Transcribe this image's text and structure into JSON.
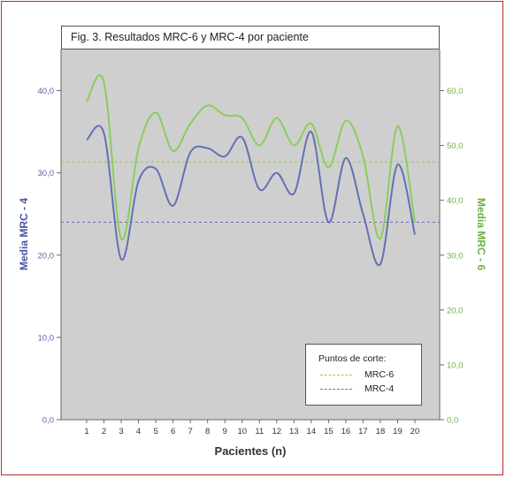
{
  "title": "Fig. 3. Resultados MRC-6 y MRC-4 por paciente",
  "colors": {
    "mrc4": "#6470b4",
    "mrc6": "#8acd5c",
    "plot_bg": "#cfcfcf",
    "frame": "#c0282f"
  },
  "chart_data": {
    "type": "line",
    "xlabel": "Pacientes (n)",
    "ylabel_left": "Media MRC - 4",
    "ylabel_right": "Media MRC - 6",
    "x": [
      1,
      2,
      3,
      4,
      5,
      6,
      7,
      8,
      9,
      10,
      11,
      12,
      13,
      14,
      15,
      16,
      17,
      18,
      19,
      20
    ],
    "x_tick_labels": [
      "1",
      "2",
      "3",
      "4",
      "5",
      "6",
      "7",
      "8",
      "9",
      "10",
      "11",
      "12",
      "13",
      "14",
      "15",
      "16",
      "17",
      "18",
      "19",
      "20"
    ],
    "ylim_left": [
      0,
      45
    ],
    "ylim_right": [
      0,
      67.5
    ],
    "yticks_left": [
      "0,0",
      "10,0",
      "20,0",
      "30,0",
      "40,0"
    ],
    "yticks_left_values": [
      0,
      10,
      20,
      30,
      40
    ],
    "yticks_right": [
      "0,0",
      "10,0",
      "20,0",
      "30,0",
      "40,0",
      "50,0",
      "60,0"
    ],
    "yticks_right_values": [
      0,
      10,
      20,
      30,
      40,
      50,
      60
    ],
    "series": [
      {
        "axis": "left",
        "values": [
          34.0,
          34.8,
          19.5,
          29.0,
          30.5,
          26.0,
          32.5,
          33.0,
          32.0,
          34.3,
          28.0,
          30.0,
          27.5,
          35.0,
          24.0,
          31.8,
          25.0,
          18.9,
          31.0,
          22.5
        ]
      },
      {
        "axis": "right",
        "values": [
          58.0,
          61.5,
          33.0,
          49.5,
          56.0,
          49.0,
          54.0,
          57.3,
          55.5,
          55.0,
          50.0,
          55.0,
          50.0,
          54.0,
          46.0,
          54.5,
          48.0,
          33.0,
          53.5,
          36.0
        ]
      }
    ],
    "reference_lines": [
      {
        "name": "MRC-6",
        "axis": "right",
        "value": 47.0
      },
      {
        "name": "MRC-4",
        "axis": "left",
        "value": 24.0
      }
    ],
    "legend": {
      "title": "Puntos de corte:",
      "placement": "bottom-right",
      "entries": [
        "MRC-6",
        "MRC-4"
      ]
    }
  }
}
